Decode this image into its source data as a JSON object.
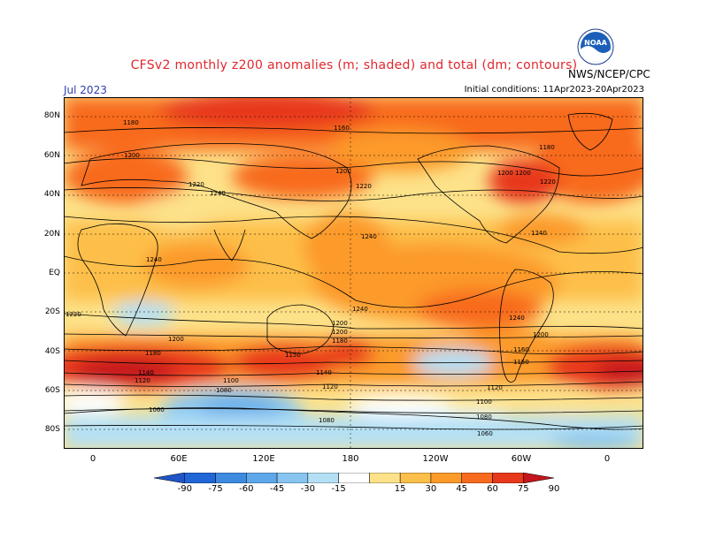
{
  "header": {
    "title": "CFSv2 monthly z200 anomalies (m; shaded) and total (dm; contours)",
    "month": "Jul 2023",
    "initial_conditions": "Initial conditions: 11Apr2023-20Apr2023",
    "agency": "NWS/NCEP/CPC",
    "logo_text": "NOAA"
  },
  "axes": {
    "lat_labels": [
      "80N",
      "60N",
      "40N",
      "20N",
      "EQ",
      "20S",
      "40S",
      "60S",
      "80S"
    ],
    "lon_labels": [
      "0",
      "60E",
      "120E",
      "180",
      "120W",
      "60W",
      "0"
    ]
  },
  "contours": {
    "labels": [
      "1180",
      "1160",
      "1200",
      "1200",
      "1180",
      "1220",
      "1240",
      "1200",
      "1220",
      "1200",
      "1220",
      "1240",
      "1240",
      "1240",
      "1240",
      "1220",
      "1200",
      "1200",
      "1240",
      "1220",
      "1200",
      "1200",
      "1180",
      "1180",
      "1150",
      "1160",
      "1140",
      "1140",
      "1120",
      "1120",
      "1080",
      "1100",
      "1060",
      "1060",
      "1080",
      "1120",
      "1150",
      "1180",
      "1100",
      "1080",
      "1060",
      "1220",
      "1150"
    ]
  },
  "colorbar": {
    "labels": [
      "-90",
      "-75",
      "-60",
      "-45",
      "-30",
      "-15",
      "15",
      "30",
      "45",
      "60",
      "75",
      "90"
    ],
    "colors": [
      "#2166d6",
      "#3d8ae0",
      "#5ea8ea",
      "#87c5f0",
      "#b4e0f5",
      "#ffffff",
      "#fde28a",
      "#fdbf4a",
      "#fc9a2a",
      "#f86a1e",
      "#e8381b",
      "#c4161c"
    ]
  },
  "palette": {
    "land_line": "#000000",
    "title_color": "#e0272d",
    "month_color": "#2f3fb0"
  }
}
